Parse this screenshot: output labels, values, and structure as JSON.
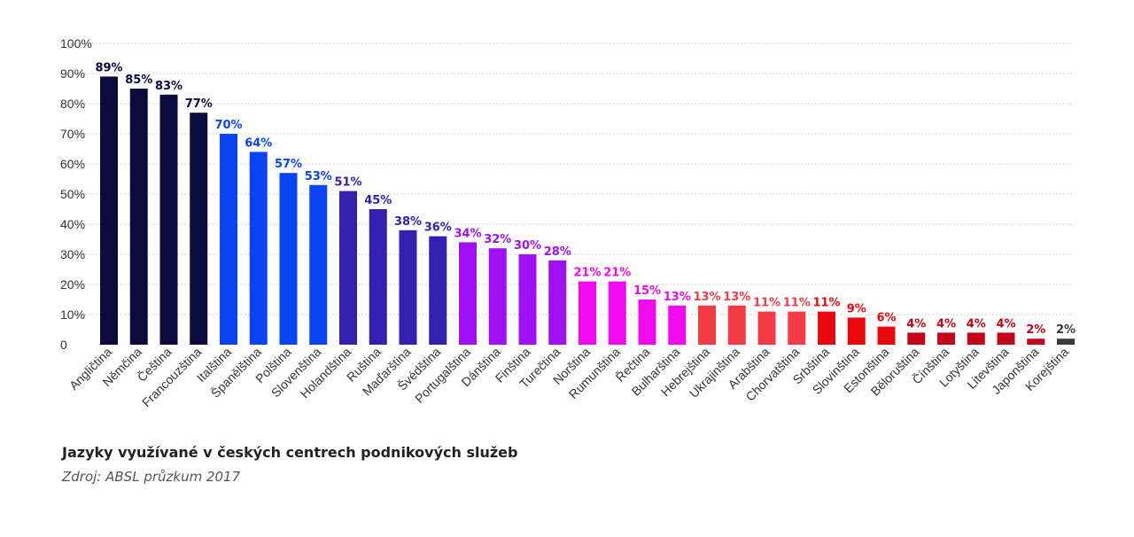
{
  "chart_data": {
    "type": "bar",
    "categories": [
      "Angličtina",
      "Němčina",
      "Čeština",
      "Francouzština",
      "Italština",
      "Španělština",
      "Polština",
      "Slovenština",
      "Holandština",
      "Ruština",
      "Maďarština",
      "Švédština",
      "Portugalština",
      "Dánština",
      "Finština",
      "Turečtina",
      "Norština",
      "Rumunština",
      "Řečtina",
      "Bulharština",
      "Hebrejština",
      "Ukrajinština",
      "Arabština",
      "Chorvatština",
      "Srbština",
      "Slovinština",
      "Estonština",
      "Běloruština",
      "Čínština",
      "Lotyština",
      "Litevština",
      "Japonština",
      "Korejština"
    ],
    "values": [
      89,
      85,
      83,
      77,
      70,
      64,
      57,
      53,
      51,
      45,
      38,
      36,
      34,
      32,
      30,
      28,
      21,
      21,
      15,
      13,
      13,
      13,
      11,
      11,
      11,
      9,
      6,
      4,
      4,
      4,
      4,
      2,
      2
    ],
    "value_labels": [
      "89%",
      "85%",
      "83%",
      "77%",
      "70%",
      "64%",
      "57%",
      "53%",
      "51%",
      "45%",
      "38%",
      "36%",
      "34%",
      "32%",
      "30%",
      "28%",
      "21%",
      "21%",
      "15%",
      "13%",
      "13%",
      "13%",
      "11%",
      "11%",
      "11%",
      "9%",
      "6%",
      "4%",
      "4%",
      "4%",
      "4%",
      "2%",
      "2%"
    ],
    "colors": [
      "#0b0c3d",
      "#0b0c3d",
      "#0b0c3d",
      "#0b0c3d",
      "#0a43f4",
      "#0a43f4",
      "#0a43f4",
      "#0a43f4",
      "#3320b0",
      "#3320b0",
      "#3320b0",
      "#3320b0",
      "#a010f4",
      "#a010f4",
      "#a010f4",
      "#a010f4",
      "#f00af0",
      "#f00af0",
      "#f00af0",
      "#f00af0",
      "#f53b46",
      "#f53b46",
      "#f53b46",
      "#f53b46",
      "#e8070d",
      "#e8070d",
      "#e8070d",
      "#c4051a",
      "#c4051a",
      "#c4051a",
      "#c4051a",
      "#c4051a",
      "#3a3a3a"
    ],
    "yticks": [
      "0",
      "10%",
      "20%",
      "30%",
      "40%",
      "50%",
      "60%",
      "70%",
      "80%",
      "90%",
      "100%"
    ],
    "ylim": [
      0,
      100
    ],
    "grid": true,
    "title": "Jazyky využívané v českých centrech podnikových služeb",
    "source": "Zdroj: ABSL průzkum 2017"
  }
}
